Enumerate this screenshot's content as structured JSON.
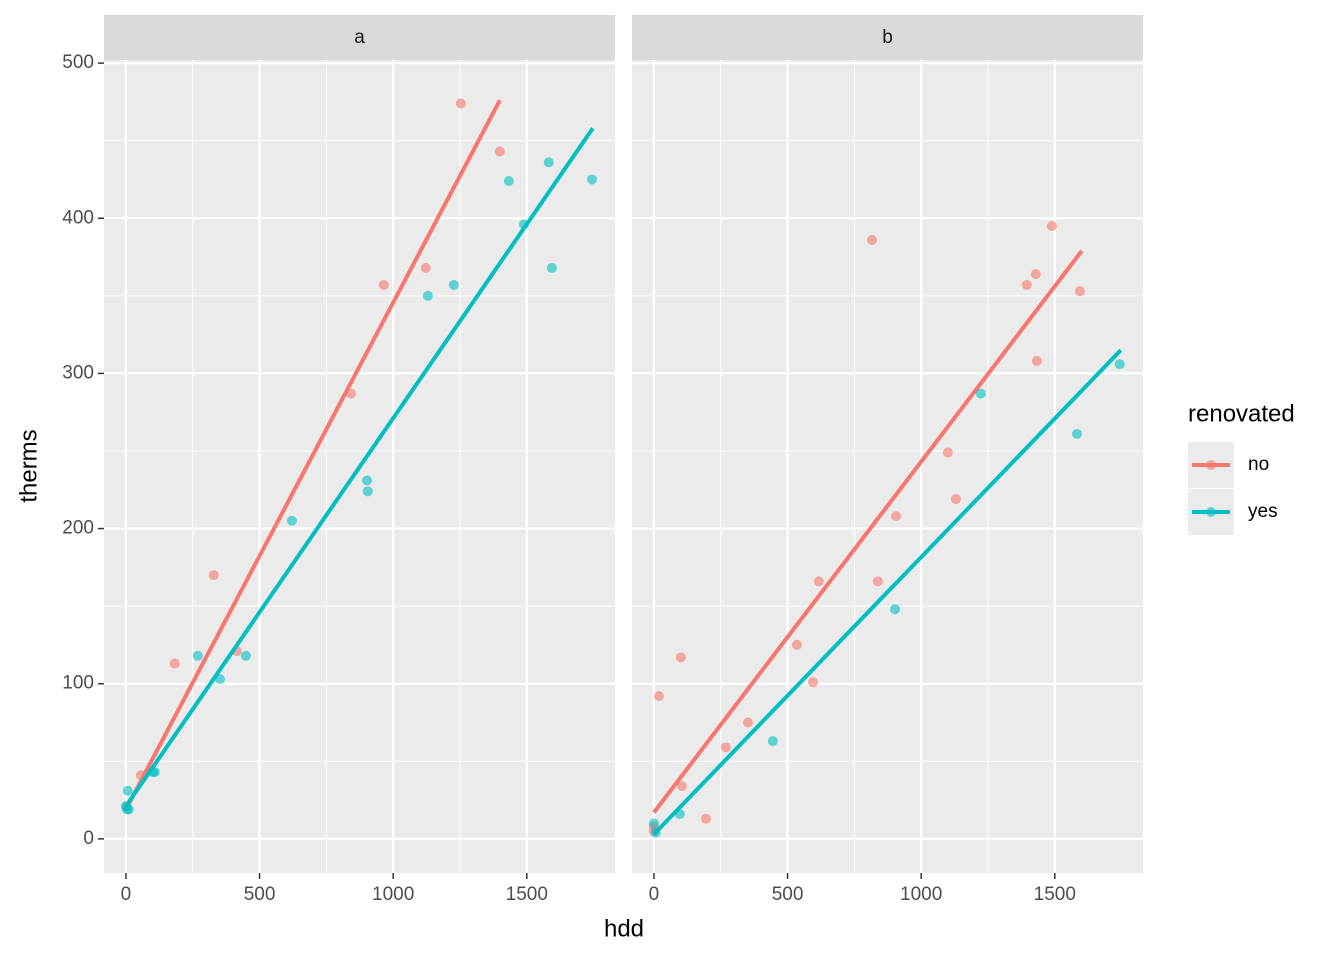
{
  "chart_data": {
    "type": "scatter",
    "x_label": "hdd",
    "y_label": "therms",
    "legend_title": "renovated",
    "xlim": [
      -82,
      1830
    ],
    "ylim": [
      -22,
      502
    ],
    "xticks": [
      0,
      500,
      1000,
      1500
    ],
    "yticks": [
      0,
      100,
      200,
      300,
      400,
      500
    ],
    "grid": true,
    "panels": [
      {
        "title": "a",
        "series": [
          {
            "name": "no",
            "color": "#F8766D",
            "x": [
              183,
              329,
              415,
              842,
              965,
              1122,
              1253,
              1399,
              56,
              3
            ],
            "values": [
              113,
              170,
              121,
              287,
              357,
              368,
              474,
              443,
              41,
              21
            ],
            "fit_x": [
              0,
              1399
            ],
            "fit_values": [
              19,
              476
            ]
          },
          {
            "name": "yes",
            "color": "#00BFC4",
            "x": [
              7,
              4,
              0,
              11,
              101,
              108,
              269,
              352,
              449,
              621,
              902,
              905,
              1130,
              1227,
              1433,
              1489,
              1582,
              1594,
              1744
            ],
            "values": [
              31,
              19,
              21,
              19,
              43,
              43,
              118,
              103,
              118,
              205,
              231,
              224,
              350,
              357,
              424,
              396,
              436,
              368,
              425
            ],
            "fit_x": [
              0,
              1747
            ],
            "fit_values": [
              21,
              458
            ]
          }
        ]
      },
      {
        "title": "b",
        "series": [
          {
            "name": "no",
            "color": "#F8766D",
            "x": [
              0,
              0,
              19,
              101,
              105,
              195,
              269,
              352,
              535,
              595,
              617,
              816,
              838,
              906,
              1100,
              1130,
              1395,
              1429,
              1433,
              1489,
              1594
            ],
            "values": [
              8,
              5,
              92,
              117,
              34,
              13,
              59,
              75,
              125,
              101,
              166,
              386,
              166,
              208,
              249,
              219,
              357,
              364,
              308,
              395,
              353
            ],
            "fit_x": [
              0,
              1601
            ],
            "fit_values": [
              17,
              379
            ]
          },
          {
            "name": "yes",
            "color": "#00BFC4",
            "x": [
              7,
              0,
              97,
              445,
              902,
              1223,
              1583,
              1743
            ],
            "values": [
              4,
              10,
              16,
              63,
              148,
              287,
              261,
              306
            ],
            "fit_x": [
              0,
              1747
            ],
            "fit_values": [
              3,
              315
            ]
          }
        ]
      }
    ]
  }
}
